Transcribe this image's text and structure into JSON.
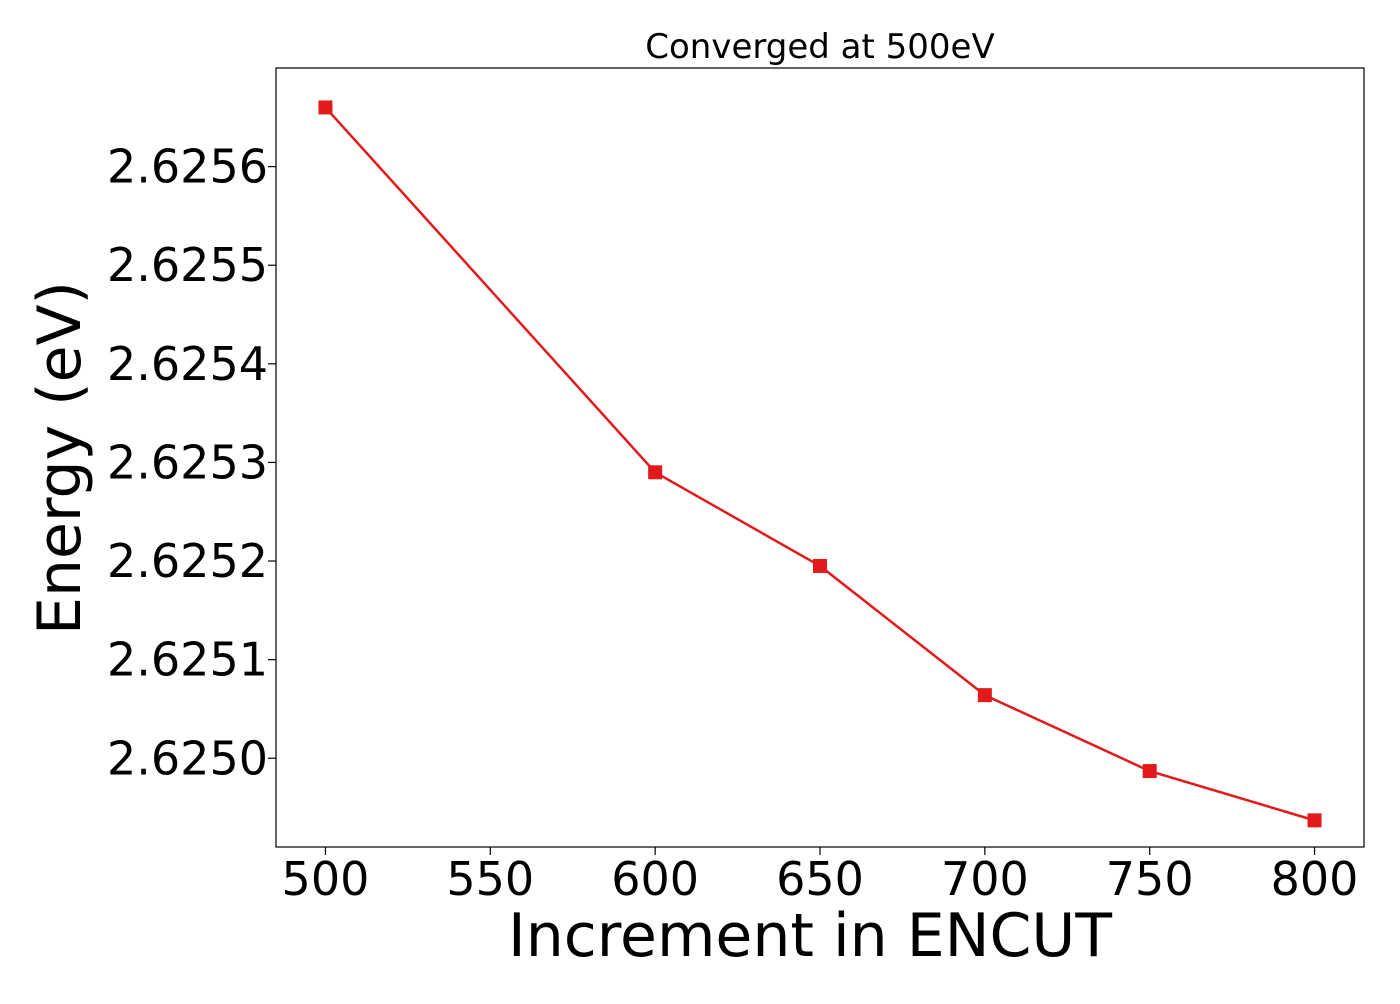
{
  "chart_data": {
    "type": "line",
    "title": "Converged at 500eV",
    "xlabel": "Increment in ENCUT",
    "ylabel": "Energy (eV)",
    "x": [
      500,
      600,
      650,
      700,
      750,
      800
    ],
    "series": [
      {
        "name": "",
        "values": [
          2.62566,
          2.62529,
          2.625195,
          2.625064,
          2.624987,
          2.624937
        ],
        "color": "#e31a1c",
        "marker": "square"
      }
    ],
    "xlim": [
      485,
      815
    ],
    "ylim": [
      2.62491,
      2.6257
    ],
    "xticks": [
      500,
      550,
      600,
      650,
      700,
      750,
      800
    ],
    "yticks": [
      2.625,
      2.6251,
      2.6252,
      2.6253,
      2.6254,
      2.6255,
      2.6256
    ],
    "ytick_labels": [
      "2.6250",
      "2.6251",
      "2.6252",
      "2.6253",
      "2.6254",
      "2.6255",
      "2.6256"
    ],
    "grid": false,
    "legend": false
  }
}
